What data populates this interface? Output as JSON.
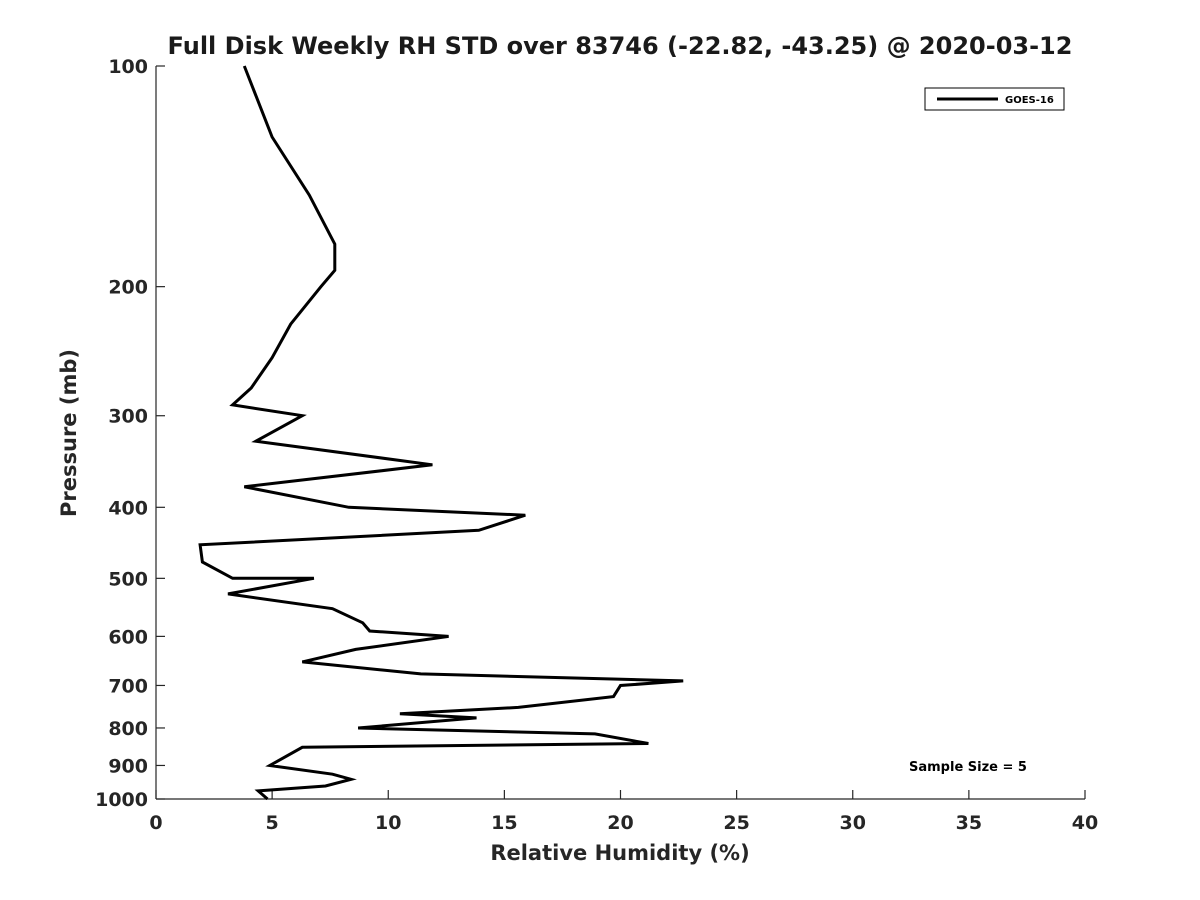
{
  "chart_data": {
    "type": "line",
    "title": "Full Disk Weekly RH STD over 83746 (-22.82, -43.25) @ 2020-03-12",
    "xlabel": "Relative Humidity (%)",
    "ylabel": "Pressure (mb)",
    "xlim": [
      0,
      40
    ],
    "ylim": [
      100,
      1000
    ],
    "y_scale": "log",
    "y_reversed": true,
    "x_ticks": [
      "0",
      "5",
      "10",
      "15",
      "20",
      "25",
      "30",
      "35",
      "40"
    ],
    "y_ticks": [
      "100",
      "200",
      "300",
      "400",
      "500",
      "600",
      "700",
      "800",
      "900",
      "1000"
    ],
    "grid": false,
    "legend_position": "top-right",
    "annotation": "Sample Size = 5",
    "series": [
      {
        "name": "GOES-16",
        "color": "#000000",
        "points": [
          [
            3.8,
            100
          ],
          [
            5.0,
            125
          ],
          [
            6.6,
            150
          ],
          [
            7.7,
            175
          ],
          [
            7.7,
            190
          ],
          [
            7.1,
            200
          ],
          [
            5.8,
            225
          ],
          [
            5.0,
            250
          ],
          [
            4.1,
            275
          ],
          [
            3.3,
            290
          ],
          [
            6.3,
            300
          ],
          [
            4.3,
            325
          ],
          [
            11.9,
            350
          ],
          [
            3.8,
            375
          ],
          [
            8.3,
            400
          ],
          [
            15.9,
            410
          ],
          [
            13.9,
            430
          ],
          [
            1.9,
            450
          ],
          [
            2.0,
            475
          ],
          [
            3.3,
            500
          ],
          [
            6.8,
            500
          ],
          [
            3.1,
            525
          ],
          [
            7.6,
            550
          ],
          [
            8.9,
            575
          ],
          [
            9.2,
            590
          ],
          [
            12.6,
            600
          ],
          [
            8.6,
            625
          ],
          [
            6.3,
            650
          ],
          [
            11.4,
            675
          ],
          [
            22.7,
            690
          ],
          [
            20.0,
            700
          ],
          [
            19.7,
            725
          ],
          [
            15.6,
            750
          ],
          [
            10.5,
            765
          ],
          [
            13.8,
            775
          ],
          [
            8.7,
            800
          ],
          [
            18.9,
            815
          ],
          [
            21.2,
            840
          ],
          [
            6.3,
            850
          ],
          [
            4.9,
            900
          ],
          [
            7.6,
            925
          ],
          [
            8.4,
            940
          ],
          [
            7.3,
            960
          ],
          [
            4.4,
            975
          ],
          [
            4.8,
            1000
          ]
        ]
      }
    ]
  }
}
